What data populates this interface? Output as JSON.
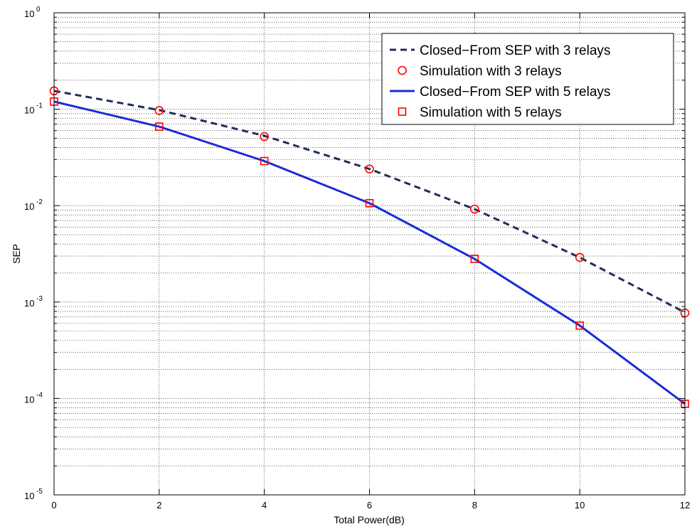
{
  "chart_data": {
    "type": "line",
    "title": "",
    "xlabel": "Total Power(dB)",
    "ylabel": "SEP",
    "xlim": [
      0,
      12
    ],
    "ylim": [
      1e-05,
      1
    ],
    "yscale": "log",
    "grid": true,
    "legend_position": "top-right",
    "x_ticks": [
      {
        "value": 0,
        "label": "0"
      },
      {
        "value": 2,
        "label": "2"
      },
      {
        "value": 4,
        "label": "4"
      },
      {
        "value": 6,
        "label": "6"
      },
      {
        "value": 8,
        "label": "8"
      },
      {
        "value": 10,
        "label": "10"
      },
      {
        "value": 12,
        "label": "12"
      }
    ],
    "y_ticks": [
      {
        "value": 1,
        "base": "10",
        "exp": "0"
      },
      {
        "value": 0.1,
        "base": "10",
        "exp": "-1"
      },
      {
        "value": 0.01,
        "base": "10",
        "exp": "-2"
      },
      {
        "value": 0.001,
        "base": "10",
        "exp": "-3"
      },
      {
        "value": 0.0001,
        "base": "10",
        "exp": "-4"
      },
      {
        "value": 1e-05,
        "base": "10",
        "exp": "-5"
      }
    ],
    "x": [
      0,
      2,
      4,
      6,
      8,
      10,
      12
    ],
    "series": [
      {
        "name": "Closed−From SEP with 3 relays",
        "style": "dashed-line",
        "color": "#1f2d5c",
        "values": [
          0.155,
          0.098,
          0.053,
          0.024,
          0.0092,
          0.0029,
          0.00078
        ]
      },
      {
        "name": "Simulation with 3 relays",
        "style": "circle-marker",
        "color": "#ff0000",
        "values": [
          0.155,
          0.097,
          0.052,
          0.024,
          0.0092,
          0.0029,
          0.00077
        ]
      },
      {
        "name": "Closed−From SEP with 5 relays",
        "style": "solid-line",
        "color": "#1a2cd8",
        "values": [
          0.12,
          0.066,
          0.029,
          0.0106,
          0.0028,
          0.00057,
          8.8e-05
        ]
      },
      {
        "name": "Simulation with 5 relays",
        "style": "square-marker",
        "color": "#ff0000",
        "values": [
          0.12,
          0.066,
          0.029,
          0.0106,
          0.0028,
          0.00057,
          8.8e-05
        ]
      }
    ]
  }
}
